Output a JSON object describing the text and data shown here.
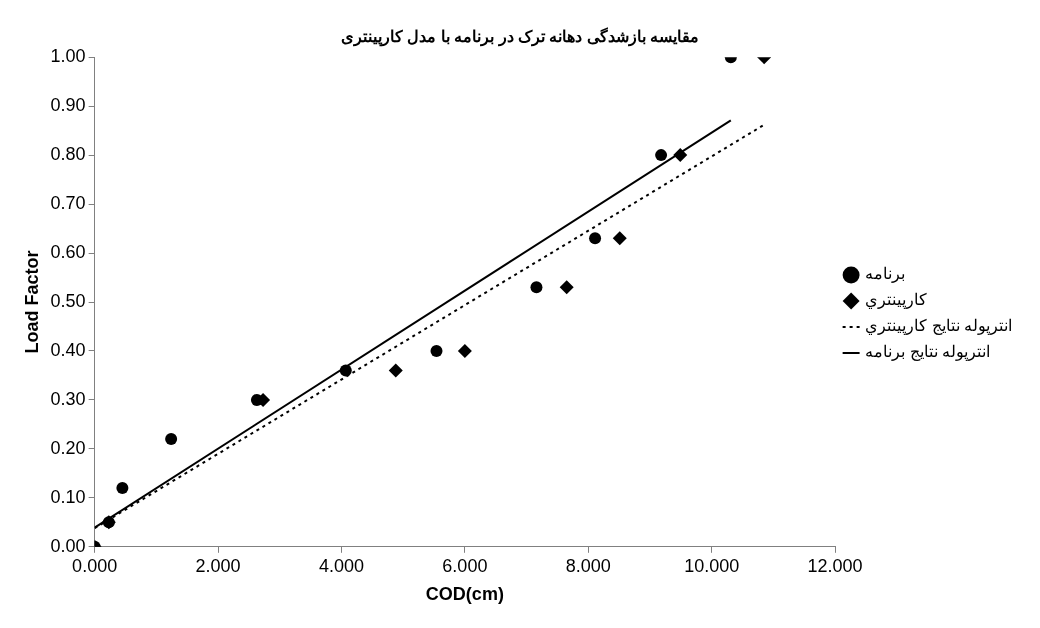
{
  "chart_data": {
    "type": "scatter",
    "title": "مقایسه بازشدگی دهانه ترک در برنامه با مدل کارپینتری",
    "xlabel": "COD(cm)",
    "ylabel": "Load Factor",
    "xlim": [
      0,
      12
    ],
    "xticks": [
      {
        "value": 0,
        "label": "0.000"
      },
      {
        "value": 2,
        "label": "2.000"
      },
      {
        "value": 4,
        "label": "4.000"
      },
      {
        "value": 6,
        "label": "6.000"
      },
      {
        "value": 8,
        "label": "8.000"
      },
      {
        "value": 10,
        "label": "10.000"
      },
      {
        "value": 12,
        "label": "12.000"
      }
    ],
    "ylim": [
      0,
      1
    ],
    "yticks": [
      {
        "value": 0,
        "label": "0.00"
      },
      {
        "value": 0.1,
        "label": "0.10"
      },
      {
        "value": 0.2,
        "label": "0.20"
      },
      {
        "value": 0.3,
        "label": "0.30"
      },
      {
        "value": 0.4,
        "label": "0.40"
      },
      {
        "value": 0.5,
        "label": "0.50"
      },
      {
        "value": 0.6,
        "label": "0.60"
      },
      {
        "value": 0.7,
        "label": "0.70"
      },
      {
        "value": 0.8,
        "label": "0.80"
      },
      {
        "value": 0.9,
        "label": "0.90"
      },
      {
        "value": 1,
        "label": "1.00"
      }
    ],
    "grid": false,
    "legend": "right",
    "series": [
      {
        "name": "برنامه",
        "marker": "circle",
        "color": "#000000",
        "x": [
          0,
          0.23,
          0.45,
          1.24,
          2.63,
          4.07,
          5.54,
          7.16,
          8.11,
          9.18,
          10.31
        ],
        "values": [
          0,
          0.05,
          0.12,
          0.22,
          0.3,
          0.36,
          0.4,
          0.53,
          0.63,
          0.8,
          1.0
        ]
      },
      {
        "name": "کارپینتري",
        "marker": "diamond",
        "color": "#000000",
        "x": [
          0,
          0.23,
          2.73,
          4.88,
          6.0,
          7.65,
          8.51,
          9.49,
          10.85
        ],
        "values": [
          0,
          0.05,
          0.3,
          0.36,
          0.4,
          0.53,
          0.63,
          0.8,
          1.0
        ]
      },
      {
        "name": "انترپوله نتایج کارپینتري",
        "type": "line",
        "marker": "none",
        "line_style": "dotted",
        "color": "#000000",
        "x": [
          0,
          10.85
        ],
        "values": [
          0.038,
          0.862
        ]
      },
      {
        "name": "انترپوله نتایج برنامه",
        "type": "line",
        "marker": "none",
        "line_style": "solid",
        "color": "#000000",
        "x": [
          0,
          10.31
        ],
        "values": [
          0.039,
          0.871
        ]
      }
    ]
  }
}
